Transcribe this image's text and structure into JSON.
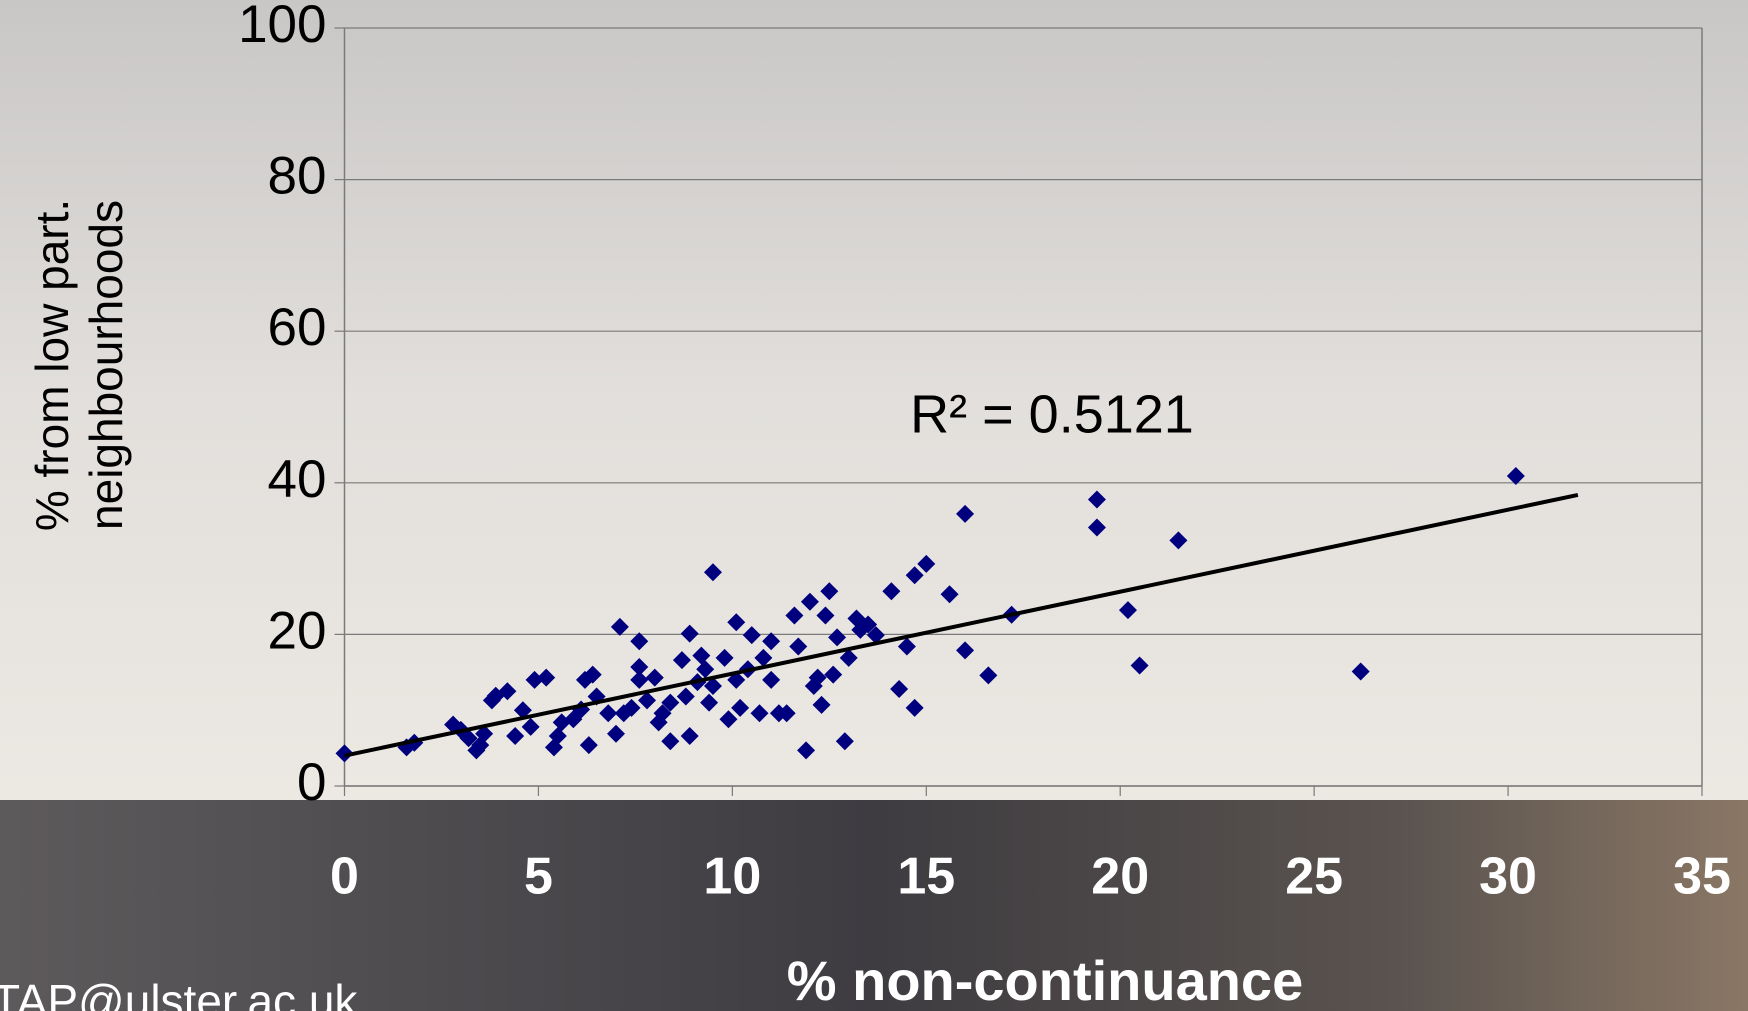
{
  "chart_data": {
    "type": "scatter",
    "x_label": "% non-continuance",
    "y_label": [
      "% from low part.",
      "neighbourhoods"
    ],
    "annotation": "R² = 0.5121",
    "footer": "TAP@ulster.ac.uk",
    "series": [
      {
        "color": "#00007f",
        "x": [
          0,
          1.6,
          1.8,
          2.8,
          3,
          3.2,
          3.4,
          3.5,
          3.6,
          3.8,
          3.9,
          4.2,
          4.4,
          4.6,
          4.9,
          5.2,
          4.8,
          5.4,
          5.5,
          5.6,
          5.9,
          6.1,
          6.3,
          6.2,
          6.4,
          6.5,
          6.8,
          7,
          7.1,
          7.2,
          7.4,
          7.6,
          7.6,
          7.6,
          7.8,
          8,
          8.1,
          8.2,
          8.4,
          8.4,
          8.7,
          8.8,
          8.9,
          8.9,
          9.1,
          9.2,
          9.3,
          9.4,
          9.5,
          9.5,
          9.8,
          9.9,
          10.1,
          10.1,
          10.2,
          10.4,
          10.5,
          10.7,
          10.8,
          11,
          11,
          11.2,
          11.4,
          11.6,
          11.7,
          11.9,
          12,
          12.1,
          12.2,
          12.3,
          12.4,
          12.5,
          12.6,
          12.7,
          12.9,
          13,
          13.2,
          13.3,
          13.5,
          13.7,
          14.1,
          14.3,
          14.5,
          14.7,
          14.7,
          15,
          15.6,
          16,
          16,
          16.6,
          17.2,
          19.4,
          19.4,
          20.2,
          20.5,
          21.5,
          26.2,
          30.2
        ],
        "values": [
          4.3,
          5.1,
          5.7,
          8.1,
          7.4,
          6.3,
          4.7,
          5.4,
          6.9,
          11.3,
          11.9,
          12.5,
          6.6,
          10,
          14,
          14.3,
          7.8,
          5.1,
          6.6,
          8.4,
          8.8,
          10.1,
          5.4,
          14,
          14.7,
          11.8,
          9.6,
          6.9,
          21,
          9.6,
          10.3,
          19.1,
          15.7,
          14,
          11.3,
          14.3,
          8.4,
          9.6,
          5.9,
          11,
          16.6,
          11.8,
          20.1,
          6.6,
          13.7,
          17.2,
          15.4,
          11,
          28.2,
          13.2,
          16.9,
          8.8,
          21.6,
          14,
          10.3,
          15.4,
          19.9,
          9.6,
          16.9,
          14,
          19.1,
          9.6,
          9.6,
          22.5,
          18.4,
          4.7,
          24.3,
          13.2,
          14.3,
          10.7,
          22.5,
          25.7,
          14.7,
          19.6,
          5.9,
          16.9,
          22.1,
          20.6,
          21.3,
          19.9,
          25.7,
          12.8,
          18.4,
          10.3,
          27.8,
          29.3,
          25.3,
          17.9,
          35.9,
          14.6,
          22.6,
          37.8,
          34.1,
          23.2,
          15.9,
          32.4,
          15.1,
          40.9
        ]
      }
    ],
    "trendline": {
      "color": "#000000",
      "x": [
        0,
        31.8
      ],
      "values": [
        4,
        38.4
      ]
    },
    "xlim": [
      0,
      35
    ],
    "xticks": [
      0,
      5,
      10,
      15,
      20,
      25,
      30,
      35
    ],
    "ylim": [
      0,
      100
    ],
    "yticks": [
      0,
      20,
      40,
      60,
      80,
      100
    ],
    "grid": true
  }
}
